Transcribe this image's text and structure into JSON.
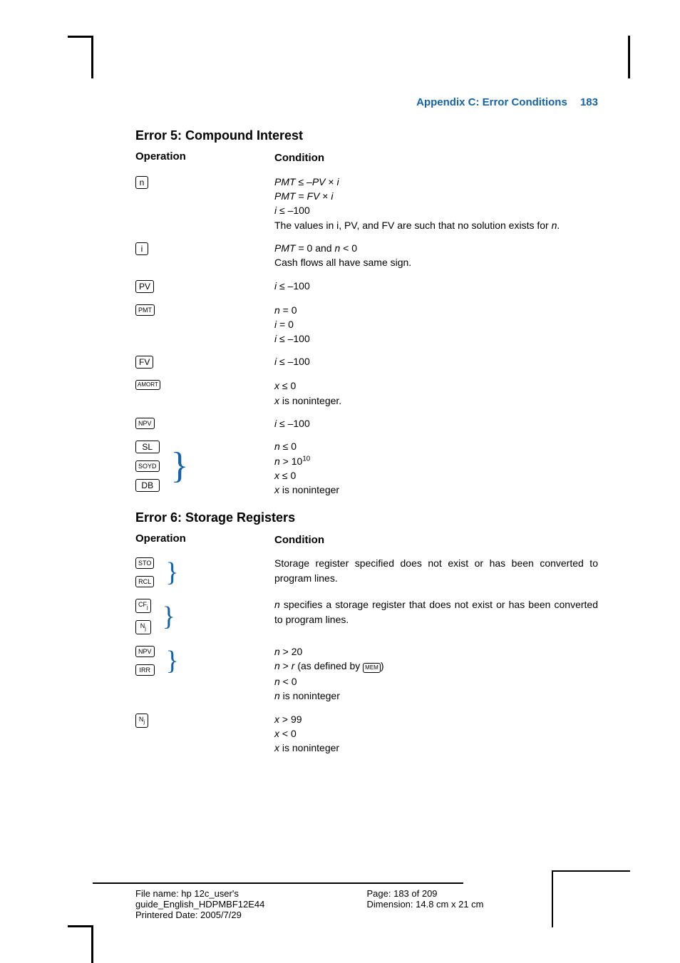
{
  "header": {
    "title": "Appendix C: Error Conditions",
    "page": "183"
  },
  "section5": {
    "heading": "Error 5: Compound Interest",
    "col_op": "Operation",
    "col_cond": "Condition",
    "rows": {
      "n": {
        "key": "n",
        "l1_lhs": "PMT",
        "l1_op": " ≤ –",
        "l1_rhs1": "PV",
        "l1_mid": " × ",
        "l1_rhs2": "i",
        "l2_lhs": "PMT",
        "l2_op": " = ",
        "l2_rhs1": "FV",
        "l2_mid": " × ",
        "l2_rhs2": "i",
        "l3_lhs": "i",
        "l3_op": " ≤ –100",
        "l4": "The values in i, PV, and FV are such that no solution exists for ",
        "l4_var": "n",
        "l4_end": "."
      },
      "i": {
        "key": "i",
        "l1_lhs": "PMT",
        "l1_mid": " = 0 and ",
        "l1_var": "n",
        "l1_end": " < 0",
        "l2": "Cash flows all have same sign."
      },
      "pv": {
        "key": "PV",
        "l1_lhs": "i",
        "l1_end": " ≤ –100"
      },
      "pmt": {
        "key": "PMT",
        "l1_lhs": "n",
        "l1_end": " = 0",
        "l2_lhs": "i",
        "l2_end": " = 0",
        "l3_lhs": "i",
        "l3_end": " ≤ –100"
      },
      "fv": {
        "key": "FV",
        "l1_lhs": "i",
        "l1_end": " ≤ –100"
      },
      "amort": {
        "key": "AMORT",
        "l1_lhs": "x",
        "l1_end": " ≤ 0",
        "l2_lhs": "x",
        "l2_end": " is noninteger."
      },
      "npv": {
        "key": "NPV",
        "l1_lhs": "i",
        "l1_end": " ≤ –100"
      },
      "dep": {
        "k1": "SL",
        "k2": "SOYD",
        "k3": "DB",
        "l1_lhs": "n",
        "l1_end": " ≤ 0",
        "l2_lhs": "n",
        "l2_end": " > 10",
        "l2_sup": "10",
        "l3_lhs": "x",
        "l3_end": " ≤ 0",
        "l4_lhs": "x",
        "l4_end": " is noninteger"
      }
    }
  },
  "section6": {
    "heading": "Error 6: Storage Registers",
    "col_op": "Operation",
    "col_cond": "Condition",
    "rows": {
      "stoRcl": {
        "k1": "STO",
        "k2": "RCL",
        "text": "Storage register specified does not exist or has been converted to program lines."
      },
      "cfj": {
        "k1": "CF",
        "k1sub": "j",
        "k2": "N",
        "k2sub": "j",
        "l1_var": "n",
        "l1_rest": " specifies a storage register that does not exist or has been converted to program lines."
      },
      "npvIrr": {
        "k1": "NPV",
        "k2": "IRR",
        "l1_lhs": "n",
        "l1_end": " > 20",
        "l2_lhs": "n",
        "l2_mid": " > ",
        "l2_var": "r",
        "l2_rest": " (as defined by ",
        "l2_key": "MEM",
        "l2_close": ")",
        "l3_lhs": "n",
        "l3_end": " < 0",
        "l4_lhs": "n",
        "l4_end": " is noninteger"
      },
      "nj": {
        "k1": "N",
        "k1sub": "j",
        "l1_lhs": "x",
        "l1_end": " > 99",
        "l2_lhs": "x",
        "l2_end": " < 0",
        "l3_lhs": "x",
        "l3_end": " is noninteger"
      }
    }
  },
  "footer": {
    "file": "File name: hp 12c_user's guide_English_HDPMBF12E44",
    "date": "Printered Date: 2005/7/29",
    "page": "Page: 183 of 209",
    "dim": "Dimension: 14.8 cm x 21 cm"
  }
}
